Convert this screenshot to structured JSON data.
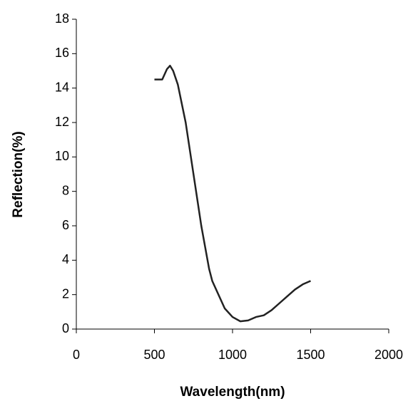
{
  "chart_data": {
    "type": "line",
    "x_label": "Wavelength(nm)",
    "y_label": "Reflection(%)",
    "x": [
      500,
      550,
      580,
      600,
      620,
      650,
      700,
      750,
      800,
      850,
      870,
      900,
      950,
      1000,
      1050,
      1100,
      1150,
      1200,
      1250,
      1300,
      1350,
      1400,
      1450,
      1500
    ],
    "series": [
      {
        "color": "#222222",
        "values": [
          14.5,
          14.5,
          15.1,
          15.3,
          15.0,
          14.2,
          12.0,
          9.0,
          6.0,
          3.5,
          2.8,
          2.2,
          1.2,
          0.7,
          0.45,
          0.5,
          0.7,
          0.8,
          1.1,
          1.5,
          1.9,
          2.3,
          2.6,
          2.8
        ]
      }
    ],
    "xlim": [
      0,
      2000
    ],
    "xticks": [
      0,
      500,
      1000,
      1500,
      2000
    ],
    "ylim": [
      0,
      18
    ],
    "yticks": [
      0,
      2,
      4,
      6,
      8,
      10,
      12,
      14,
      16,
      18
    ]
  }
}
